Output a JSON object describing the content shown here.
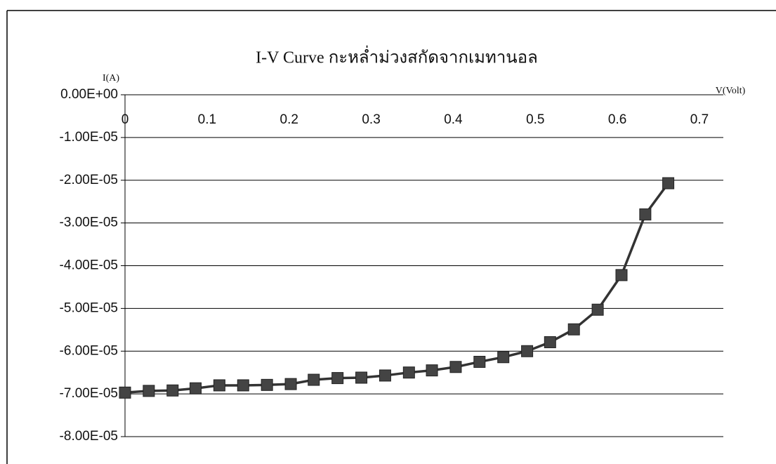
{
  "chart_data": {
    "type": "line",
    "title": "I-V Curve กะหล่ำม่วงสกัดจากเมทานอล",
    "y_label": "I(A)",
    "x_label": "V(Volt)",
    "x": [
      0,
      0.029,
      0.058,
      0.086,
      0.115,
      0.144,
      0.173,
      0.202,
      0.23,
      0.259,
      0.288,
      0.317,
      0.346,
      0.374,
      0.403,
      0.432,
      0.461,
      0.49,
      0.518,
      0.547,
      0.576,
      0.605,
      0.634,
      0.662
    ],
    "series": [
      {
        "name": "I",
        "color": "#333333",
        "values": [
          -6.97e-05,
          -6.93e-05,
          -6.92e-05,
          -6.87e-05,
          -6.8e-05,
          -6.8e-05,
          -6.79e-05,
          -6.77e-05,
          -6.67e-05,
          -6.63e-05,
          -6.62e-05,
          -6.57e-05,
          -6.5e-05,
          -6.45e-05,
          -6.37e-05,
          -6.25e-05,
          -6.14e-05,
          -6e-05,
          -5.79e-05,
          -5.49e-05,
          -5.03e-05,
          -4.22e-05,
          -2.8e-05,
          -2.07e-05
        ]
      }
    ],
    "xlim": [
      0,
      0.7
    ],
    "xticks": [
      0,
      0.1,
      0.2,
      0.3,
      0.4,
      0.5,
      0.6,
      0.7
    ],
    "ylim": [
      -8e-05,
      0
    ],
    "yticks": [
      {
        "value": 0,
        "label": "0.00E+00"
      },
      {
        "value": -1e-05,
        "label": "-1.00E-05"
      },
      {
        "value": -2e-05,
        "label": "-2.00E-05"
      },
      {
        "value": -3e-05,
        "label": "-3.00E-05"
      },
      {
        "value": -4e-05,
        "label": "-4.00E-05"
      },
      {
        "value": -5e-05,
        "label": "-5.00E-05"
      },
      {
        "value": -6e-05,
        "label": "-6.00E-05"
      },
      {
        "value": -7e-05,
        "label": "-7.00E-05"
      },
      {
        "value": -8e-05,
        "label": "-8.00E-05"
      }
    ],
    "grid": true
  }
}
